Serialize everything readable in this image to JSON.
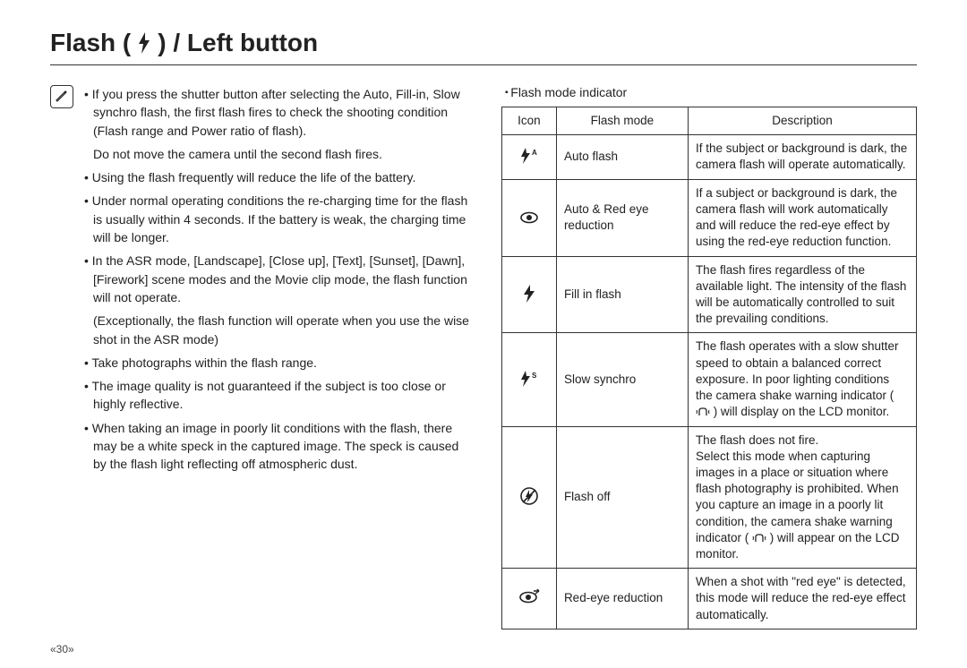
{
  "title": {
    "prefix": "Flash ( ",
    "suffix": " ) / Left button"
  },
  "left": {
    "b1": "If you press the shutter button after selecting the Auto, Fill-in, Slow synchro flash, the first flash fires to check the shooting condition (Flash range and Power ratio of flash).",
    "b1b": "Do not move the camera until the second flash fires.",
    "b2": "Using the flash frequently will reduce the life of the battery.",
    "b3": "Under normal operating conditions the re-charging time for the flash is usually within 4 seconds. If the battery is weak, the charging time will be longer.",
    "b4": "In the ASR mode, [Landscape], [Close up], [Text], [Sunset], [Dawn], [Firework] scene modes and the Movie clip mode, the flash function will not operate.",
    "b4b": "(Exceptionally, the flash function will operate when you use the wise shot in the ASR mode)",
    "b5": "Take photographs within the flash range.",
    "b6": "The image quality is not guaranteed if the subject is too close or highly reflective.",
    "b7": "When taking an image in poorly lit conditions with the flash, there may be a white speck in the captured image. The speck is caused by the flash light reflecting off atmospheric dust."
  },
  "right": {
    "caption": "Flash mode indicator",
    "headers": {
      "icon": "Icon",
      "mode": "Flash mode",
      "desc": "Description"
    },
    "rows": {
      "r0": {
        "mode": "Auto flash",
        "desc": "If the subject or background is dark, the camera flash will operate automatically."
      },
      "r1": {
        "mode": "Auto & Red eye reduction",
        "desc": "If a subject or background is dark, the camera flash will work automatically and will reduce the red-eye effect by using the red-eye reduction function."
      },
      "r2": {
        "mode": "Fill in flash",
        "desc": "The flash fires regardless of the available light. The intensity of the flash will be automatically controlled to suit the prevailing conditions."
      },
      "r3": {
        "mode": "Slow synchro",
        "desc": "The flash operates with a slow shutter speed to obtain a balanced correct exposure. In poor lighting conditions the camera shake warning indicator (   ) will display on the LCD monitor."
      },
      "r4": {
        "mode": "Flash off",
        "desc": "The flash does not fire.\nSelect this mode when capturing images in a place or situation where flash photography is prohibited. When you capture an image in a poorly lit condition, the camera shake warning indicator (   ) will appear on the LCD monitor."
      },
      "r5": {
        "mode": "Red-eye reduction",
        "desc": "When a shot with \"red eye\" is detected, this mode will reduce the red-eye effect automatically."
      }
    }
  },
  "pagenum": "«30»",
  "icons": {
    "fill": "#222222"
  }
}
